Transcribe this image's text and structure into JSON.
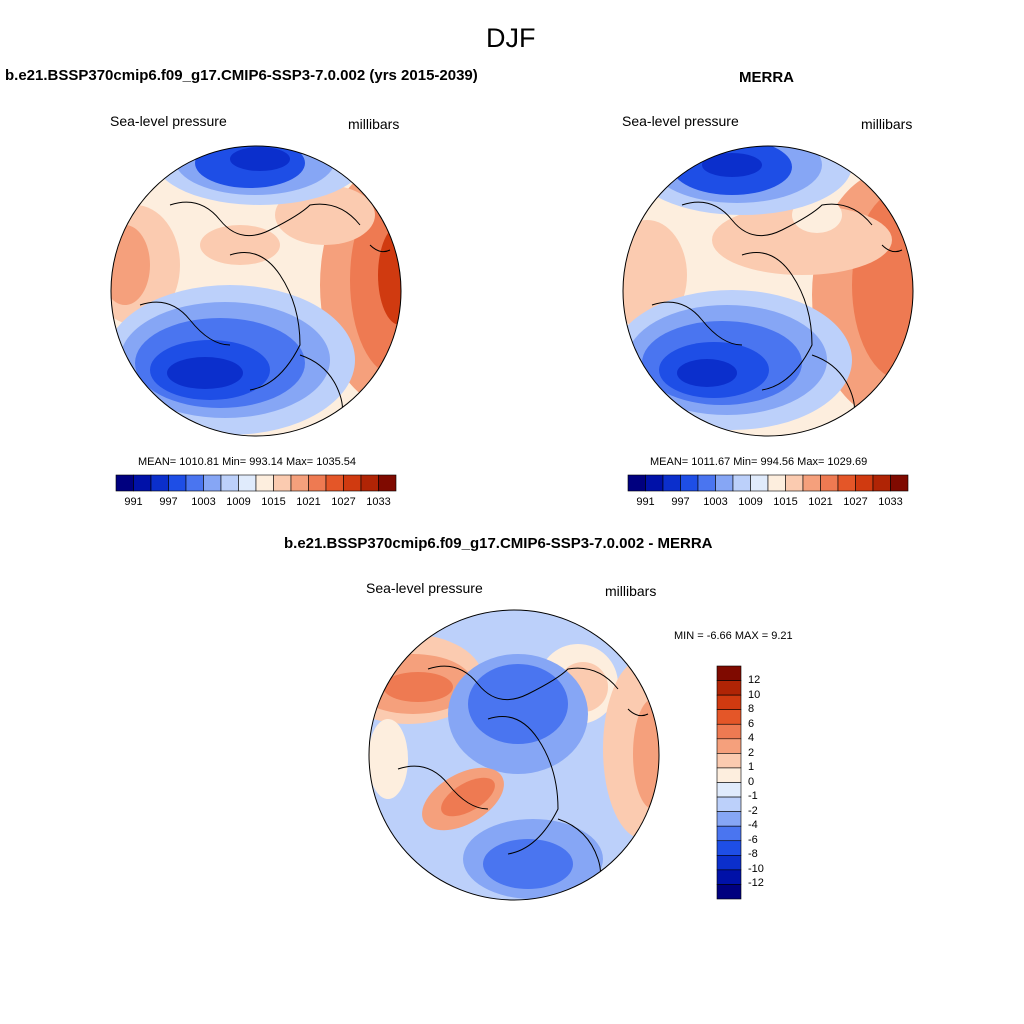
{
  "page": {
    "title": "DJF"
  },
  "panels": [
    {
      "id": "model",
      "title": "b.e21.BSSP370cmip6.f09_g17.CMIP6-SSP3-7.0.002 (yrs 2015-2039)",
      "left_label": "Sea-level pressure",
      "right_label": "millibars",
      "stats": "MEAN= 1010.81  Min= 993.14  Max= 1035.54",
      "mean": 1010.81,
      "min": 993.14,
      "max": 1035.54
    },
    {
      "id": "obs",
      "title": "MERRA",
      "left_label": "Sea-level pressure",
      "right_label": "millibars",
      "stats": "MEAN= 1011.67  Min= 994.56  Max= 1029.69",
      "mean": 1011.67,
      "min": 994.56,
      "max": 1029.69
    },
    {
      "id": "diff",
      "title": "b.e21.BSSP370cmip6.f09_g17.CMIP6-SSP3-7.0.002 - MERRA",
      "left_label": "Sea-level pressure",
      "right_label": "millibars",
      "stats": "MIN =  -6.66 MAX =   9.21",
      "min": -6.66,
      "max": 9.21
    }
  ],
  "colorbar_abs": {
    "colors": [
      "#00007f",
      "#0011a8",
      "#0b2fcc",
      "#1e4ee6",
      "#4a75f0",
      "#86a6f5",
      "#bcd0fa",
      "#e0ebfc",
      "#fdeede",
      "#fbcbb0",
      "#f5a07c",
      "#ee7a52",
      "#e45628",
      "#d03a10",
      "#b02405",
      "#7f0a00"
    ],
    "tick_labels": [
      "991",
      "997",
      "1003",
      "1009",
      "1015",
      "1021",
      "1027",
      "1033"
    ]
  },
  "colorbar_diff": {
    "colors": [
      "#7f0a00",
      "#b02405",
      "#d03a10",
      "#e45628",
      "#ee7a52",
      "#f5a07c",
      "#fbcbb0",
      "#fdeede",
      "#e0ebfc",
      "#bcd0fa",
      "#86a6f5",
      "#4a75f0",
      "#1e4ee6",
      "#0b2fcc",
      "#0011a8",
      "#00007f"
    ],
    "tick_labels": [
      "12",
      "10",
      "8",
      "6",
      "4",
      "2",
      "1",
      "0",
      "-1",
      "-2",
      "-4",
      "-6",
      "-8",
      "-10",
      "-12"
    ]
  }
}
